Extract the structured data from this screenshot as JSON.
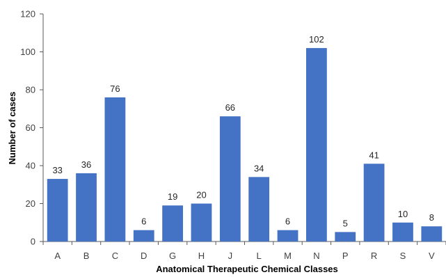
{
  "chart_data": {
    "type": "bar",
    "title": "",
    "xlabel": "Anatomical Therapeutic Chemical Classes",
    "ylabel": "Number of cases",
    "categories": [
      "A",
      "B",
      "C",
      "D",
      "G",
      "H",
      "J",
      "L",
      "M",
      "N",
      "P",
      "R",
      "S",
      "V"
    ],
    "values": [
      33,
      36,
      76,
      6,
      19,
      20,
      66,
      34,
      6,
      102,
      5,
      41,
      10,
      8
    ],
    "data_labels": [
      "33",
      "36",
      "76",
      "6",
      "19",
      "20",
      "66",
      "34",
      "6",
      "102",
      "5",
      "41",
      "10",
      "8"
    ],
    "ylim": [
      0,
      120
    ],
    "yticks": [
      "0",
      "20",
      "40",
      "60",
      "80",
      "100",
      "120"
    ],
    "grid": false,
    "legend": "none",
    "bar_color": "#4472C4",
    "axis_color": "#595959"
  }
}
